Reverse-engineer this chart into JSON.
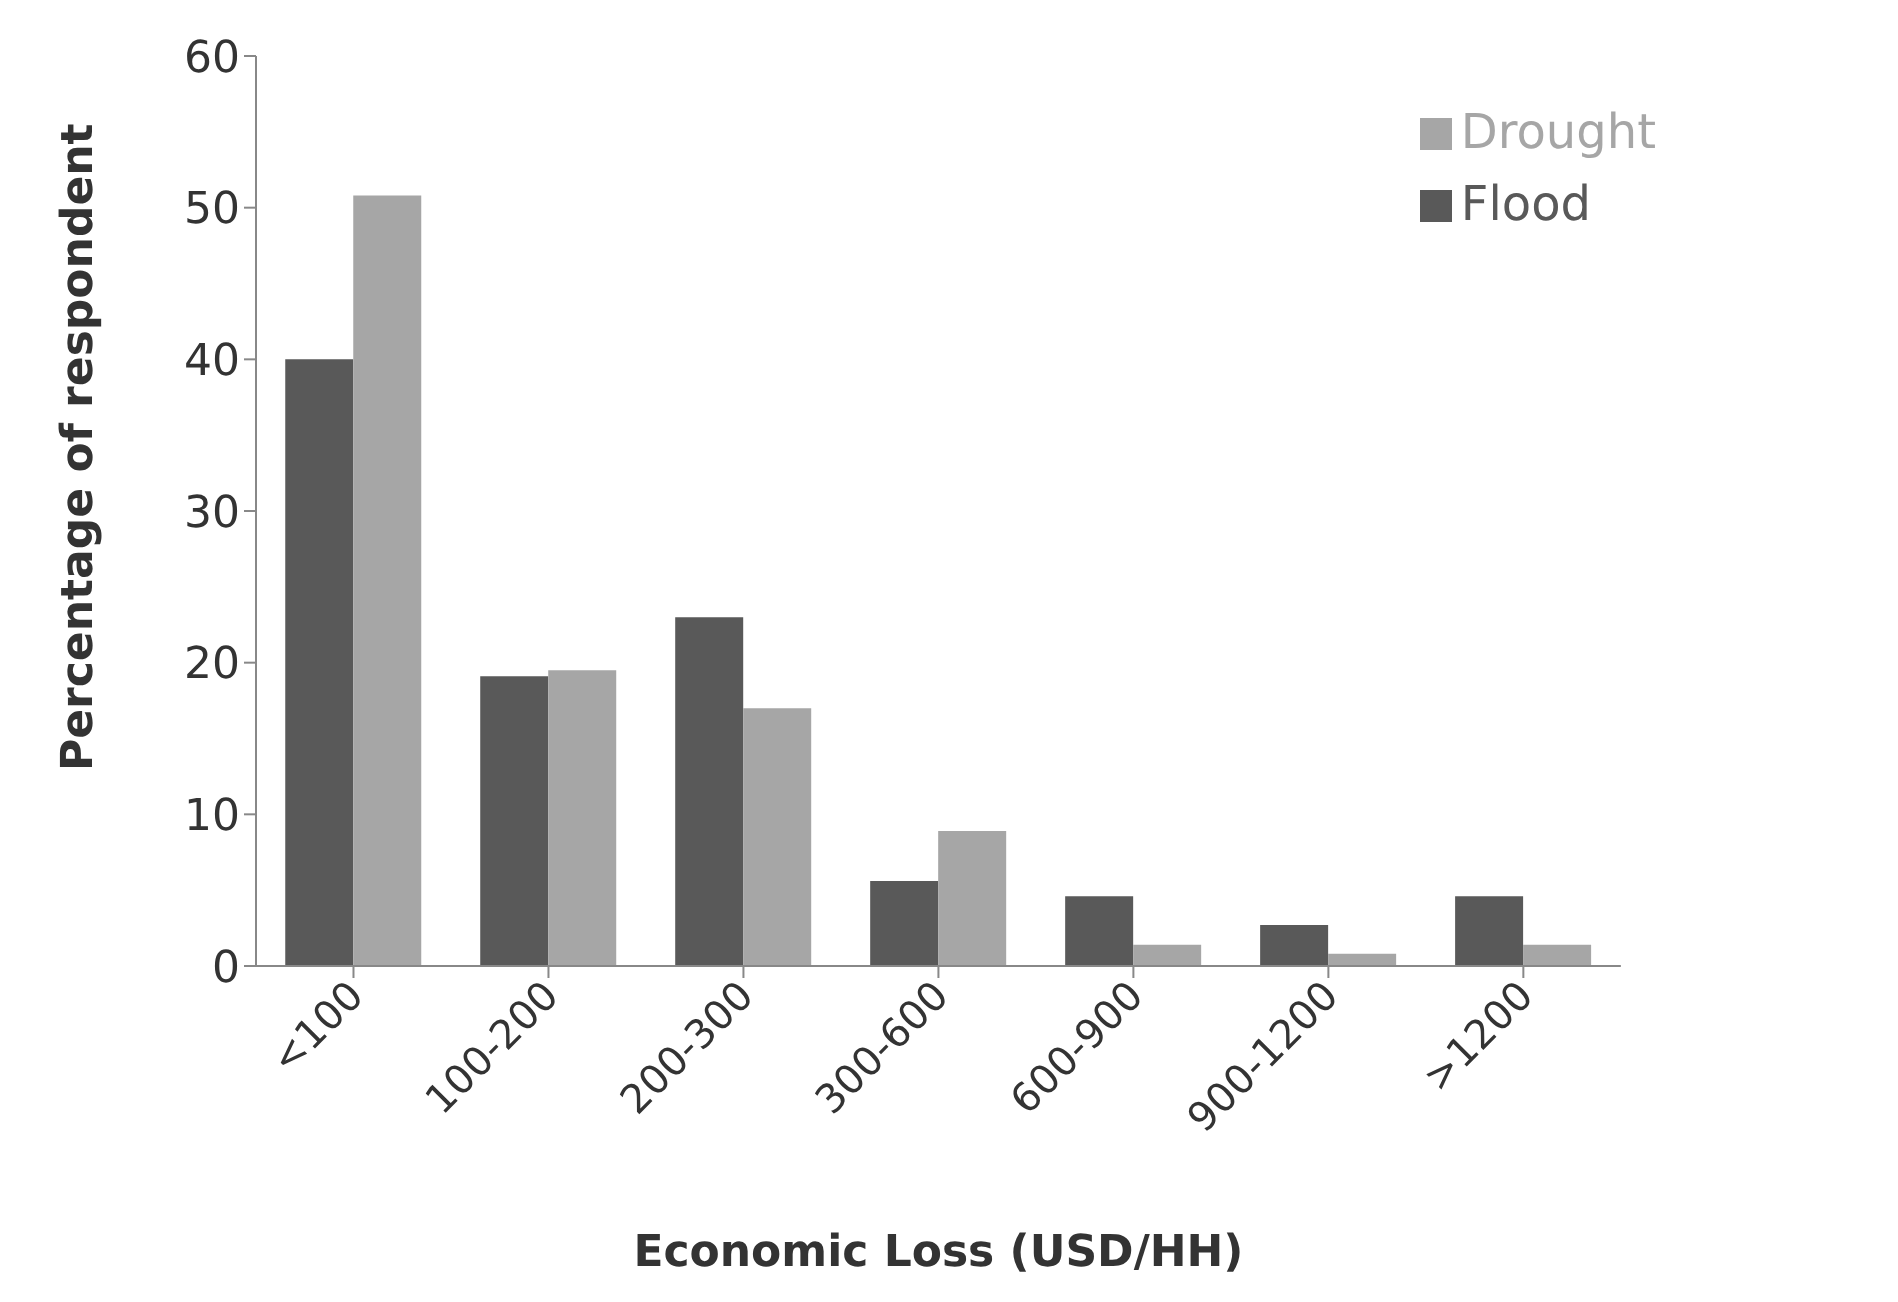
{
  "chart_data": {
    "type": "bar",
    "xlabel": "Economic Loss (USD/HH)",
    "ylabel": "Percentage of respondent",
    "categories": [
      "<100",
      "100-200",
      "200-300",
      "300-600",
      "600-900",
      "900-1200",
      ">1200"
    ],
    "series": [
      {
        "name": "Flood",
        "color": "#595959",
        "values": [
          40,
          19.1,
          23,
          5.6,
          4.6,
          2.7,
          4.6
        ]
      },
      {
        "name": "Drought",
        "color": "#a6a6a6",
        "values": [
          50.8,
          19.5,
          17,
          8.9,
          1.4,
          0.8,
          1.4
        ]
      }
    ],
    "ylim": [
      0,
      60
    ],
    "yticks": [
      0,
      10,
      20,
      30,
      40,
      50,
      60
    ],
    "grid": false,
    "legend": "top right"
  }
}
